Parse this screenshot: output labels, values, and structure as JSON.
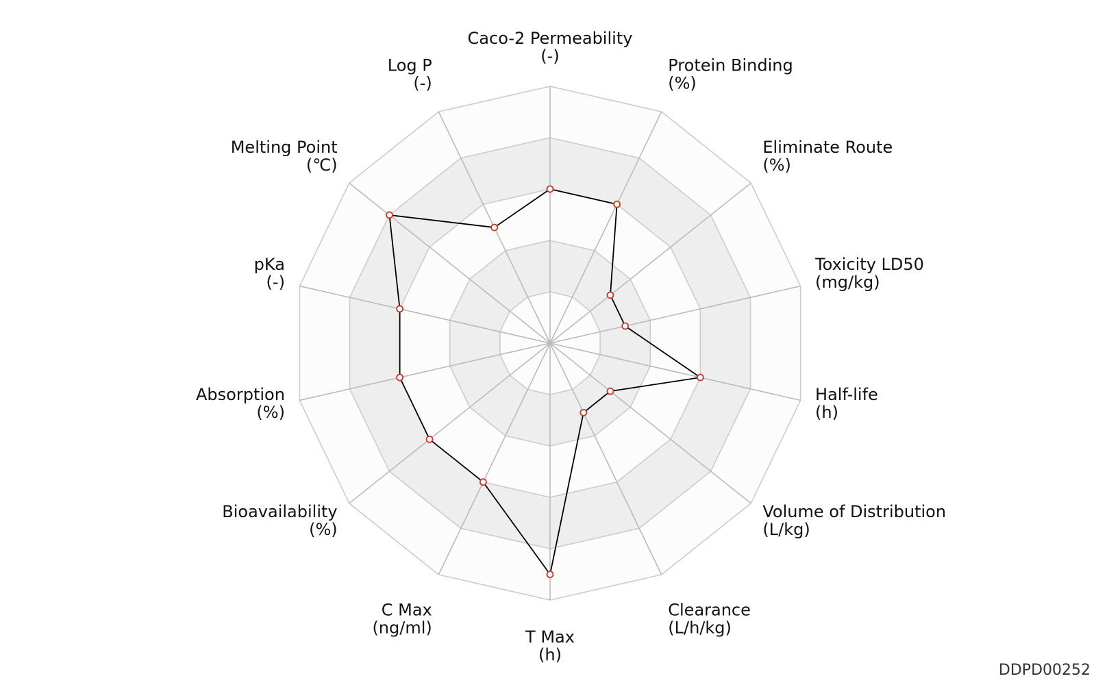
{
  "chart_data": {
    "type": "radar",
    "axes": [
      {
        "name": "Caco-2 Permeability",
        "unit": "(-)"
      },
      {
        "name": "Protein Binding",
        "unit": "(%)"
      },
      {
        "name": "Eliminate Route",
        "unit": "(%)"
      },
      {
        "name": "Toxicity LD50",
        "unit": "(mg/kg)"
      },
      {
        "name": "Half-life",
        "unit": "(h)"
      },
      {
        "name": "Volume of Distribution",
        "unit": "(L/kg)"
      },
      {
        "name": "Clearance",
        "unit": "(L/h/kg)"
      },
      {
        "name": "T Max",
        "unit": "(h)"
      },
      {
        "name": "C Max",
        "unit": "(ng/ml)"
      },
      {
        "name": "Bioavailability",
        "unit": "(%)"
      },
      {
        "name": "Absorption",
        "unit": "(%)"
      },
      {
        "name": "pKa",
        "unit": "(-)"
      },
      {
        "name": "Melting Point",
        "unit": "(℃)"
      },
      {
        "name": "Log P",
        "unit": "(-)"
      }
    ],
    "rlim": [
      0,
      5
    ],
    "rings": 5,
    "values": [
      3.0,
      3.0,
      1.5,
      1.5,
      3.0,
      1.5,
      1.5,
      4.5,
      3.0,
      3.0,
      3.0,
      3.0,
      4.0,
      2.5
    ],
    "colors": {
      "line": "#000000",
      "marker_stroke": "#c0392b",
      "band_shaded": "#eeeeee",
      "band_plain": "#fcfcfc",
      "grid": "#cccccc"
    }
  },
  "footer": {
    "id": "DDPD00252"
  }
}
